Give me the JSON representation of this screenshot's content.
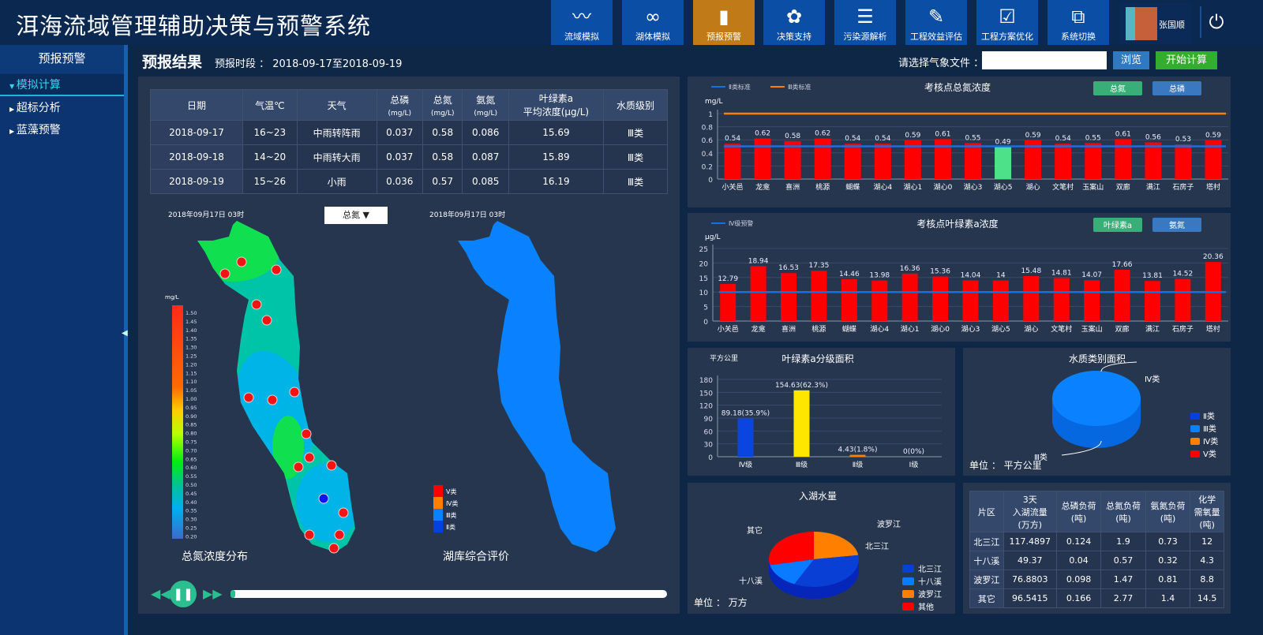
{
  "header": {
    "title": "洱海流域管理辅助决策与预警系统",
    "nav": [
      {
        "label": "流域模拟",
        "icon": "river-icon"
      },
      {
        "label": "湖体模拟",
        "icon": "lake-icon"
      },
      {
        "label": "预报预警",
        "icon": "warning-drop-icon",
        "active": true
      },
      {
        "label": "决策支持",
        "icon": "team-gear-icon"
      },
      {
        "label": "污染源解析",
        "icon": "list-icon"
      },
      {
        "label": "工程效益评估",
        "icon": "edit-icon"
      },
      {
        "label": "工程方案优化",
        "icon": "clipboard-check-icon"
      },
      {
        "label": "系统切换",
        "icon": "switch-icon"
      }
    ],
    "user": "张国顺",
    "power_icon": "power-icon"
  },
  "sidebar": {
    "title": "预报预警",
    "items": [
      {
        "label": "模拟计算",
        "active": true
      },
      {
        "label": "超标分析"
      },
      {
        "label": "蓝藻预警"
      }
    ]
  },
  "main": {
    "title": "预报结果",
    "period_label": "预报时段 ： 2018-09-17至2018-09-19",
    "file_label": "请选择气象文件 ：",
    "file_value": "",
    "browse": "浏览",
    "start": "开始计算"
  },
  "forecast_table": {
    "headers": [
      "日期",
      "气温℃",
      "天气",
      "总磷",
      "(mg/L)",
      "总氮",
      "(mg/L)",
      "氨氮",
      "(mg/L)",
      "叶绿素a",
      "平均浓度(μg/L)",
      "水质级别"
    ],
    "rows": [
      [
        "2018-09-17",
        "16~23",
        "中雨转阵雨",
        "0.037",
        "0.58",
        "0.086",
        "15.69",
        "Ⅲ类"
      ],
      [
        "2018-09-18",
        "14~20",
        "中雨转大雨",
        "0.037",
        "0.58",
        "0.087",
        "15.89",
        "Ⅲ类"
      ],
      [
        "2018-09-19",
        "15~26",
        "小雨",
        "0.036",
        "0.57",
        "0.085",
        "16.19",
        "Ⅲ类"
      ]
    ]
  },
  "maps": {
    "time1": "2018年09月17日 03时",
    "time2": "2018年09月17日 03时",
    "dropdown": "总氮",
    "title1": "总氮浓度分布",
    "title2": "湖库综合评价",
    "scale_unit": "mg/L",
    "scale_ticks": [
      "1.50",
      "1.45",
      "1.40",
      "1.35",
      "1.30",
      "1.25",
      "1.20",
      "1.15",
      "1.10",
      "1.05",
      "1.00",
      "0.95",
      "0.90",
      "0.85",
      "0.80",
      "0.75",
      "0.70",
      "0.65",
      "0.60",
      "0.55",
      "0.50",
      "0.45",
      "0.40",
      "0.35",
      "0.30",
      "0.25",
      "0.20"
    ],
    "class_legend": [
      {
        "label": "Ⅴ类",
        "color": "#ff0000"
      },
      {
        "label": "Ⅳ类",
        "color": "#ff7f00"
      },
      {
        "label": "Ⅲ类",
        "color": "#0a82ff"
      },
      {
        "label": "Ⅱ类",
        "color": "#0342e0"
      }
    ]
  },
  "playback": {
    "progress": 0.01
  },
  "chart_data": [
    {
      "type": "bar",
      "title": "考核点总氮浓度",
      "ylabel": "mg/L",
      "ylim": [
        0,
        1
      ],
      "yticks": [
        "0",
        "0.2",
        "0.4",
        "0.6",
        "0.8",
        "1"
      ],
      "categories": [
        "小关邑",
        "龙龛",
        "喜洲",
        "桃源",
        "蝴蝶",
        "湖心4",
        "湖心1",
        "湖心0",
        "湖心3",
        "湖心5",
        "湖心",
        "文笔村",
        "玉案山",
        "双廊",
        "满江",
        "石房子",
        "塔村"
      ],
      "values": [
        0.54,
        0.62,
        0.58,
        0.62,
        0.54,
        0.54,
        0.59,
        0.61,
        0.55,
        0.49,
        0.59,
        0.54,
        0.55,
        0.61,
        0.56,
        0.53,
        0.59
      ],
      "lines": [
        {
          "name": "Ⅱ类标准",
          "value": 0.5,
          "color": "#1a6fe0"
        },
        {
          "name": "Ⅲ类标准",
          "value": 1,
          "color": "#ff7f00"
        }
      ],
      "buttons": [
        "总氮",
        "总磷"
      ]
    },
    {
      "type": "bar",
      "title": "考核点叶绿素a浓度",
      "ylabel": "μg/L",
      "ylim": [
        0,
        25
      ],
      "yticks": [
        "0",
        "5",
        "10",
        "15",
        "20",
        "25"
      ],
      "categories": [
        "小关邑",
        "龙龛",
        "喜洲",
        "桃源",
        "蝴蝶",
        "湖心4",
        "湖心1",
        "湖心0",
        "湖心3",
        "湖心5",
        "湖心",
        "文笔村",
        "玉案山",
        "双廊",
        "满江",
        "石房子",
        "塔村"
      ],
      "values": [
        12.79,
        18.94,
        16.53,
        17.35,
        14.46,
        13.98,
        16.36,
        15.36,
        14.04,
        14.0,
        15.48,
        14.81,
        14.07,
        17.66,
        13.81,
        14.52,
        20.36
      ],
      "lines": [
        {
          "name": "Ⅳ级预警",
          "value": 10,
          "color": "#1a6fe0"
        }
      ],
      "buttons": [
        "叶绿素a",
        "氨氮"
      ]
    },
    {
      "type": "bar",
      "title": "叶绿素a分级面积",
      "ylabel": "平方公里",
      "ylim": [
        0,
        180
      ],
      "yticks": [
        "0",
        "30",
        "60",
        "90",
        "120",
        "150",
        "180"
      ],
      "categories": [
        "Ⅳ级",
        "Ⅲ级",
        "Ⅱ级",
        "Ⅰ级"
      ],
      "values": [
        89.18,
        154.63,
        4.43,
        0
      ],
      "labels": [
        "89.18(35.9%)",
        "154.63(62.3%)",
        "4.43(1.8%)",
        "0(0%)"
      ],
      "colors": [
        "#0a45e0",
        "#ffe600",
        "#ff7f00",
        "#ff0000"
      ]
    },
    {
      "type": "pie",
      "title": "水质类别面积",
      "unit": "单位 ：  平方公里",
      "slice_labels": [
        "Ⅳ类",
        "Ⅲ类"
      ],
      "legend": [
        {
          "label": "Ⅱ类",
          "color": "#0342e0"
        },
        {
          "label": "Ⅲ类",
          "color": "#0a82ff"
        },
        {
          "label": "Ⅳ类",
          "color": "#ff7f00"
        },
        {
          "label": "Ⅴ类",
          "color": "#ff0000"
        }
      ]
    },
    {
      "type": "pie",
      "title": "入湖水量",
      "unit": "单位 ：  万方",
      "categories": [
        "北三江",
        "十八溪",
        "波罗江",
        "其它"
      ],
      "values": [
        117.4897,
        49.37,
        76.8803,
        96.5415
      ],
      "colors": [
        "#0a3fd6",
        "#0a7aff",
        "#ff7f00",
        "#ff0000"
      ],
      "legend_labels": [
        "北三江",
        "十八溪",
        "波罗江",
        "其他"
      ]
    }
  ],
  "load_table": {
    "headers": [
      "片区",
      "3天",
      "入湖流量",
      "(万方)",
      "总磷负荷",
      "(吨)",
      "总氮负荷",
      "(吨)",
      "氨氮负荷",
      "(吨)",
      "化学",
      "需氧量",
      "(吨)"
    ],
    "rows": [
      [
        "北三江",
        "117.4897",
        "0.124",
        "1.9",
        "0.73",
        "12"
      ],
      [
        "十八溪",
        "49.37",
        "0.04",
        "0.57",
        "0.32",
        "4.3"
      ],
      [
        "波罗江",
        "76.8803",
        "0.098",
        "1.47",
        "0.81",
        "8.8"
      ],
      [
        "其它",
        "96.5415",
        "0.166",
        "2.77",
        "1.4",
        "14.5"
      ]
    ]
  }
}
